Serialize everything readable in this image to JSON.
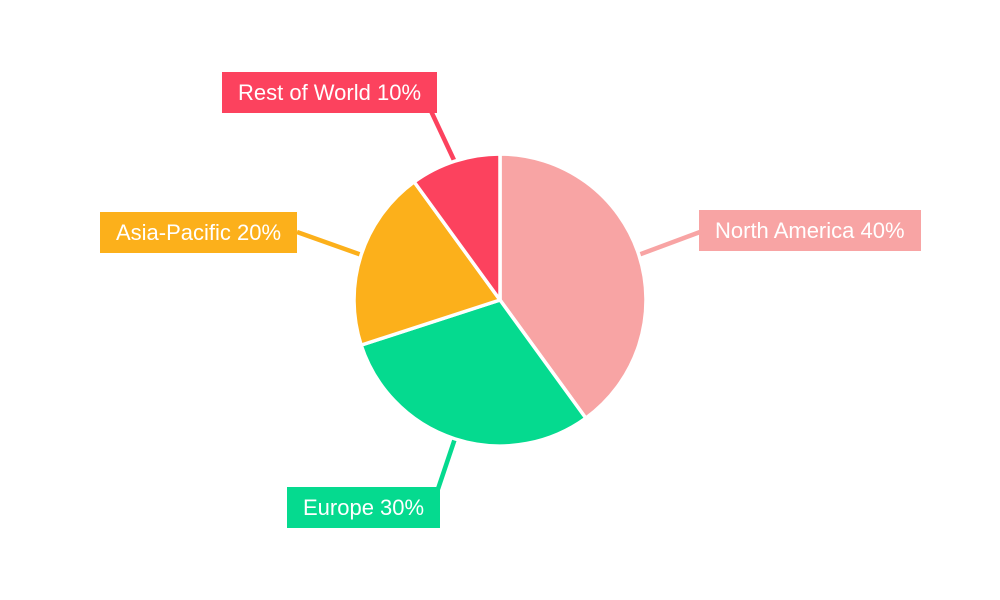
{
  "figure": {
    "background": "#ffffff"
  },
  "chart_data": {
    "type": "pie",
    "title": "",
    "legend_position": "none",
    "direction": "clockwise",
    "start_angle": "12-oclock",
    "unit": "%",
    "categories": [
      "North America",
      "Europe",
      "Asia-Pacific",
      "Rest of World"
    ],
    "values": [
      40,
      30,
      20,
      10
    ],
    "slices": [
      {
        "name": "North America",
        "value": 40,
        "display": "North America 40%",
        "color": "#f8a4a4"
      },
      {
        "name": "Europe",
        "value": 30,
        "display": "Europe 30%",
        "color": "#05da8f"
      },
      {
        "name": "Asia-Pacific",
        "value": 20,
        "display": "Asia-Pacific 20%",
        "color": "#fcb01b"
      },
      {
        "name": "Rest of World",
        "value": 10,
        "display": "Rest of World 10%",
        "color": "#fc425e"
      }
    ],
    "label_text_color": "#ffffff",
    "slice_border_color": "#ffffff"
  }
}
